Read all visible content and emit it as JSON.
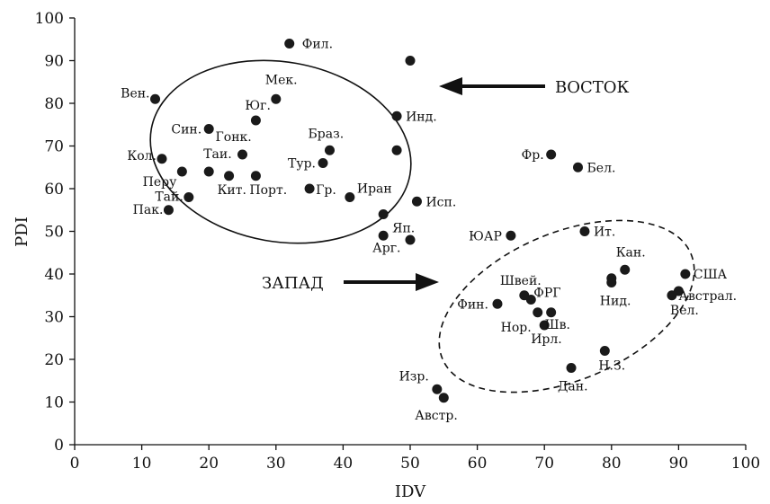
{
  "chart_data": {
    "type": "scatter",
    "xlabel": "IDV",
    "ylabel": "PDI",
    "xlim": [
      0,
      100
    ],
    "ylim": [
      0,
      100
    ],
    "xticks": [
      "0",
      "10",
      "20",
      "30",
      "40",
      "50",
      "60",
      "70",
      "80",
      "90",
      "100"
    ],
    "yticks": [
      "0",
      "10",
      "20",
      "30",
      "40",
      "50",
      "60",
      "70",
      "80",
      "90",
      "100"
    ],
    "grid": false,
    "point_color": "#1a1a1a",
    "points": [
      {
        "x": 12,
        "y": 81,
        "label": "Вен."
      },
      {
        "x": 32,
        "y": 94,
        "label": "Фил."
      },
      {
        "x": 30,
        "y": 81,
        "label": "Мек."
      },
      {
        "x": 27,
        "y": 76,
        "label": "Юг."
      },
      {
        "x": 20,
        "y": 74,
        "label": "Син."
      },
      {
        "x": 50,
        "y": 90,
        "label": ""
      },
      {
        "x": 48,
        "y": 77,
        "label": "Инд."
      },
      {
        "x": 48,
        "y": 69,
        "label": ""
      },
      {
        "x": 38,
        "y": 69,
        "label": "Браз."
      },
      {
        "x": 37,
        "y": 66,
        "label": "Тур."
      },
      {
        "x": 25,
        "y": 68,
        "label": "Гонк."
      },
      {
        "x": 13,
        "y": 67,
        "label": "Кол."
      },
      {
        "x": 16,
        "y": 64,
        "label": "Перу"
      },
      {
        "x": 20,
        "y": 64,
        "label": "Таи."
      },
      {
        "x": 23,
        "y": 63,
        "label": "Кит."
      },
      {
        "x": 27,
        "y": 63,
        "label": "Порт."
      },
      {
        "x": 17,
        "y": 58,
        "label": "Тай."
      },
      {
        "x": 14,
        "y": 55,
        "label": "Пак."
      },
      {
        "x": 35,
        "y": 60,
        "label": "Гр."
      },
      {
        "x": 41,
        "y": 58,
        "label": "Иран"
      },
      {
        "x": 51,
        "y": 57,
        "label": "Исп."
      },
      {
        "x": 46,
        "y": 54,
        "label": "Яп."
      },
      {
        "x": 46,
        "y": 49,
        "label": "Арг."
      },
      {
        "x": 50,
        "y": 48,
        "label": ""
      },
      {
        "x": 71,
        "y": 68,
        "label": "Фр."
      },
      {
        "x": 75,
        "y": 65,
        "label": "Бел."
      },
      {
        "x": 65,
        "y": 49,
        "label": "ЮАР"
      },
      {
        "x": 76,
        "y": 50,
        "label": "Ит."
      },
      {
        "x": 82,
        "y": 41,
        "label": "Кан."
      },
      {
        "x": 80,
        "y": 39,
        "label": ""
      },
      {
        "x": 80,
        "y": 38,
        "label": "Нид."
      },
      {
        "x": 91,
        "y": 40,
        "label": "США"
      },
      {
        "x": 90,
        "y": 36,
        "label": "Австрал."
      },
      {
        "x": 89,
        "y": 35,
        "label": "Вел."
      },
      {
        "x": 67,
        "y": 35,
        "label": "Швей."
      },
      {
        "x": 68,
        "y": 34,
        "label": "ФРГ"
      },
      {
        "x": 63,
        "y": 33,
        "label": "Фин."
      },
      {
        "x": 69,
        "y": 31,
        "label": "Нор."
      },
      {
        "x": 71,
        "y": 31,
        "label": "Шв."
      },
      {
        "x": 70,
        "y": 28,
        "label": "Ирл."
      },
      {
        "x": 79,
        "y": 22,
        "label": "Н.З."
      },
      {
        "x": 74,
        "y": 18,
        "label": "Дан."
      },
      {
        "x": 54,
        "y": 13,
        "label": "Изр."
      },
      {
        "x": 55,
        "y": 11,
        "label": "Австр."
      }
    ],
    "annotations": [
      {
        "id": "east",
        "text": "ВОСТОК",
        "style": "solid-ellipse",
        "arrow": "left"
      },
      {
        "id": "west",
        "text": "ЗАПАД",
        "style": "dashed-ellipse",
        "arrow": "right"
      }
    ]
  }
}
